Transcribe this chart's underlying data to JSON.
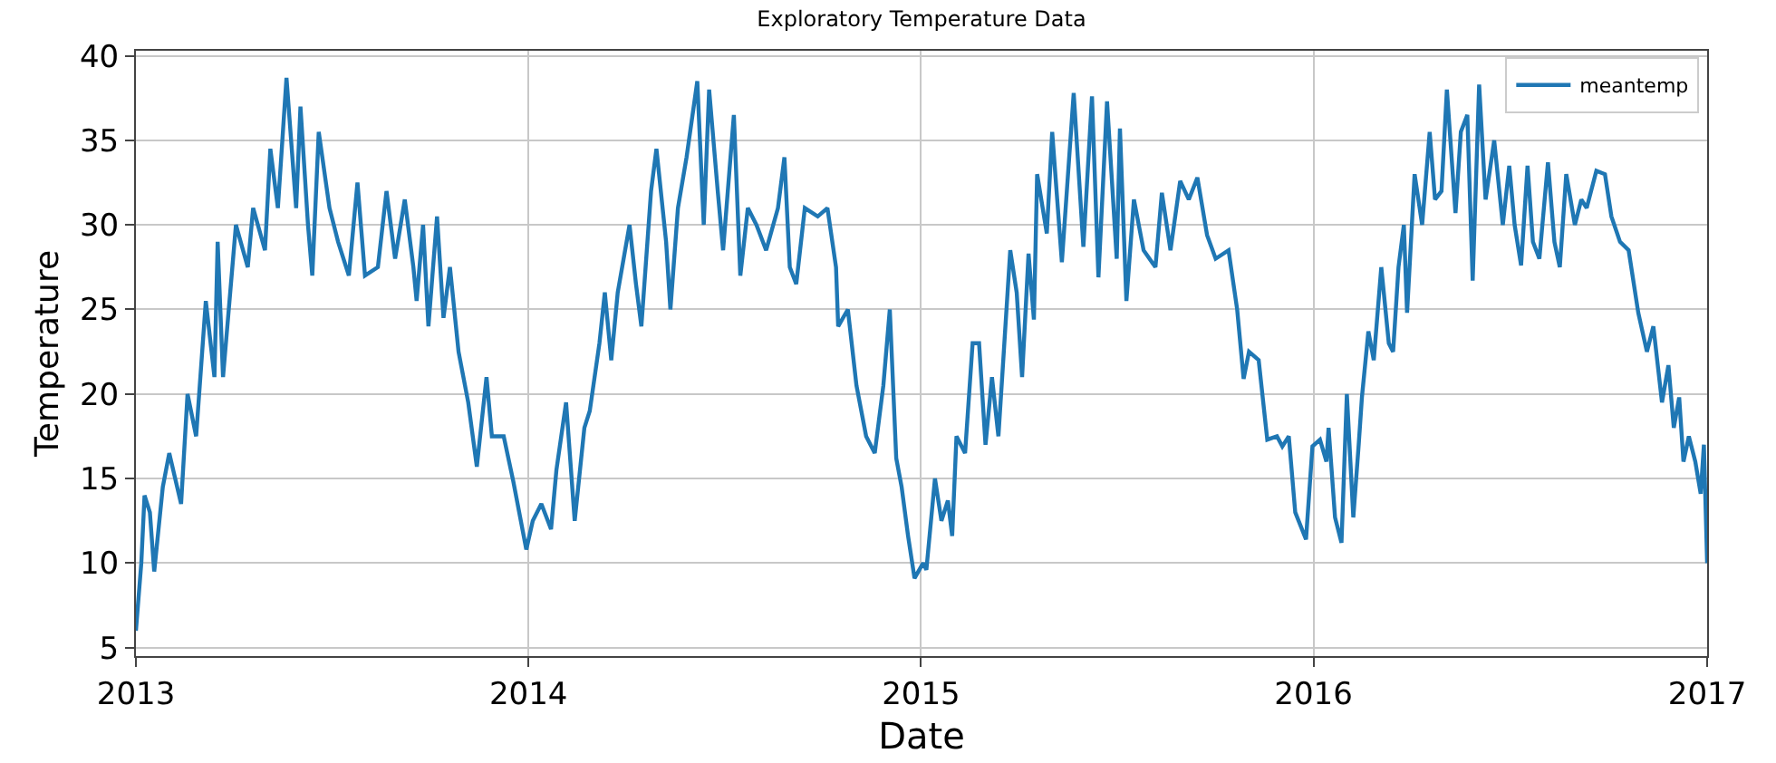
{
  "chart_data": {
    "type": "line",
    "title": "Exploratory Temperature Data",
    "xlabel": "Date",
    "ylabel": "Temperature",
    "xlim": [
      "2013",
      "2017"
    ],
    "xticks": [
      "2013",
      "2014",
      "2015",
      "2016",
      "2017"
    ],
    "ylim": [
      4.5,
      40.3
    ],
    "yticks": [
      5,
      10,
      15,
      20,
      25,
      30,
      35,
      40
    ],
    "grid": true,
    "legend": "top right",
    "marker": "none",
    "line_style": "solid",
    "series": [
      {
        "name": "meantemp",
        "color": "#1f77b4",
        "x": [
          "2013-01-01",
          "2013-01-06",
          "2013-01-09",
          "2013-01-14",
          "2013-01-18",
          "2013-01-26",
          "2013-02-01",
          "2013-02-12",
          "2013-02-18",
          "2013-02-26",
          "2013-03-07",
          "2013-03-15",
          "2013-03-18",
          "2013-03-23",
          "2013-04-04",
          "2013-04-15",
          "2013-04-20",
          "2013-05-01",
          "2013-05-06",
          "2013-05-13",
          "2013-05-21",
          "2013-05-30",
          "2013-06-03",
          "2013-06-10",
          "2013-06-14",
          "2013-06-20",
          "2013-06-30",
          "2013-07-08",
          "2013-07-18",
          "2013-07-26",
          "2013-08-02",
          "2013-08-14",
          "2013-08-22",
          "2013-08-30",
          "2013-09-08",
          "2013-09-16",
          "2013-09-19",
          "2013-09-25",
          "2013-09-30",
          "2013-10-08",
          "2013-10-14",
          "2013-10-20",
          "2013-10-28",
          "2013-11-06",
          "2013-11-14",
          "2013-11-23",
          "2013-11-28",
          "2013-12-09",
          "2013-12-18",
          "2013-12-30",
          "2014-01-05",
          "2014-01-13",
          "2014-01-22",
          "2014-01-27",
          "2014-02-05",
          "2014-02-13",
          "2014-02-22",
          "2014-02-27",
          "2014-03-08",
          "2014-03-13",
          "2014-03-19",
          "2014-03-25",
          "2014-04-05",
          "2014-04-11",
          "2014-04-16",
          "2014-04-25",
          "2014-04-30",
          "2014-05-09",
          "2014-05-13",
          "2014-05-20",
          "2014-05-28",
          "2014-06-07",
          "2014-06-13",
          "2014-06-18",
          "2014-06-26",
          "2014-07-01",
          "2014-07-11",
          "2014-07-17",
          "2014-07-24",
          "2014-08-01",
          "2014-08-10",
          "2014-08-21",
          "2014-08-27",
          "2014-09-01",
          "2014-09-07",
          "2014-09-15",
          "2014-09-27",
          "2014-10-06",
          "2014-10-14",
          "2014-10-16",
          "2014-10-25",
          "2014-11-02",
          "2014-11-11",
          "2014-11-19",
          "2014-11-27",
          "2014-12-03",
          "2014-12-09",
          "2014-12-14",
          "2014-12-20",
          "2014-12-26",
          "2015-01-03",
          "2015-01-06",
          "2015-01-14",
          "2015-01-20",
          "2015-01-26",
          "2015-01-30",
          "2015-02-03",
          "2015-02-11",
          "2015-02-18",
          "2015-02-24",
          "2015-03-02",
          "2015-03-08",
          "2015-03-14",
          "2015-03-19",
          "2015-03-25",
          "2015-03-31",
          "2015-04-05",
          "2015-04-11",
          "2015-04-16",
          "2015-04-19",
          "2015-04-28",
          "2015-05-03",
          "2015-05-12",
          "2015-05-23",
          "2015-06-01",
          "2015-06-09",
          "2015-06-15",
          "2015-06-23",
          "2015-07-02",
          "2015-07-05",
          "2015-07-11",
          "2015-07-18",
          "2015-07-27",
          "2015-08-07",
          "2015-08-13",
          "2015-08-21",
          "2015-08-30",
          "2015-09-07",
          "2015-09-15",
          "2015-09-24",
          "2015-10-02",
          "2015-10-14",
          "2015-10-22",
          "2015-10-28",
          "2015-11-02",
          "2015-11-11",
          "2015-11-19",
          "2015-11-28",
          "2015-12-03",
          "2015-12-09",
          "2015-12-15",
          "2015-12-25",
          "2015-12-31",
          "2016-01-07",
          "2016-01-13",
          "2016-01-15",
          "2016-01-21",
          "2016-01-27",
          "2016-02-01",
          "2016-02-07",
          "2016-02-12",
          "2016-02-15",
          "2016-02-21",
          "2016-02-26",
          "2016-03-04",
          "2016-03-11",
          "2016-03-15",
          "2016-03-20",
          "2016-03-25",
          "2016-03-28",
          "2016-04-04",
          "2016-04-11",
          "2016-04-18",
          "2016-04-23",
          "2016-04-29",
          "2016-05-04",
          "2016-05-12",
          "2016-05-17",
          "2016-05-23",
          "2016-05-28",
          "2016-06-03",
          "2016-06-09",
          "2016-06-17",
          "2016-06-25",
          "2016-07-01",
          "2016-07-06",
          "2016-07-12",
          "2016-07-18",
          "2016-07-23",
          "2016-07-29",
          "2016-08-06",
          "2016-08-12",
          "2016-08-17",
          "2016-08-23",
          "2016-08-31",
          "2016-09-06",
          "2016-09-11",
          "2016-09-20",
          "2016-09-28",
          "2016-10-04",
          "2016-10-12",
          "2016-10-20",
          "2016-10-29",
          "2016-11-06",
          "2016-11-12",
          "2016-11-20",
          "2016-11-26",
          "2016-12-01",
          "2016-12-06",
          "2016-12-10",
          "2016-12-15",
          "2016-12-21",
          "2016-12-26",
          "2016-12-29",
          "2017-01-01"
        ],
        "values": [
          6,
          10,
          14,
          13,
          9.5,
          14.5,
          16.5,
          13.5,
          20,
          17.5,
          25.5,
          21,
          29,
          21,
          30,
          27.5,
          31,
          28.5,
          34.5,
          31,
          38.7,
          31,
          37,
          30,
          27,
          35.5,
          31,
          29,
          27,
          32.5,
          27,
          27.5,
          32,
          28,
          31.5,
          27.5,
          25.5,
          30,
          24,
          30.5,
          24.5,
          27.5,
          22.5,
          19.5,
          15.7,
          21,
          17.5,
          17.5,
          14.8,
          10.8,
          12.5,
          13.5,
          12,
          15.5,
          19.5,
          12.5,
          18,
          19,
          23,
          26,
          22,
          26,
          30,
          26.5,
          24,
          32,
          34.5,
          29,
          25,
          31,
          34,
          38.5,
          30,
          38,
          32,
          28.5,
          36.5,
          27,
          31,
          30,
          28.5,
          31,
          34,
          27.5,
          26.5,
          31,
          30.5,
          31,
          27.5,
          24,
          25,
          20.5,
          17.5,
          16.5,
          20.5,
          25,
          16.2,
          14.5,
          11.6,
          9.1,
          10,
          9.6,
          15,
          12.5,
          13.7,
          11.6,
          17.5,
          16.5,
          23,
          23,
          17,
          21,
          17.5,
          22.5,
          28.5,
          26,
          21,
          28.3,
          24.4,
          33,
          29.5,
          35.5,
          27.8,
          37.8,
          28.7,
          37.6,
          26.9,
          37.3,
          28,
          35.7,
          25.5,
          31.5,
          28.5,
          27.5,
          31.9,
          28.5,
          32.6,
          31.5,
          32.8,
          29.4,
          28,
          28.5,
          25,
          20.9,
          22.5,
          22,
          17.3,
          17.5,
          16.9,
          17.5,
          13,
          11.4,
          16.9,
          17.3,
          16,
          18,
          12.7,
          11.2,
          20,
          12.7,
          17,
          19.8,
          23.7,
          22,
          27.5,
          23,
          22.5,
          27.5,
          30,
          24.8,
          33,
          30,
          35.5,
          31.5,
          32,
          38,
          30.7,
          35.5,
          36.5,
          26.7,
          38.3,
          31.5,
          35,
          30,
          33.5,
          30,
          27.6,
          33.5,
          29,
          28,
          33.7,
          29,
          27.5,
          33,
          30,
          31.5,
          31,
          33.2,
          33,
          30.5,
          29,
          28.5,
          24.8,
          22.5,
          24,
          19.5,
          21.7,
          18,
          19.8,
          16,
          17.5,
          16,
          14.1,
          17,
          10
        ]
      }
    ]
  }
}
